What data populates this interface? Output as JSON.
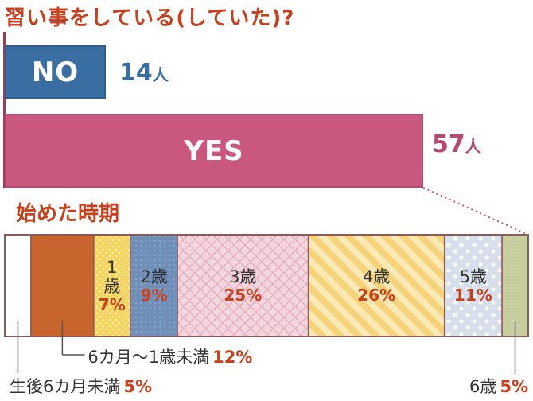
{
  "title": "習い事をしている(していた)?",
  "no_bar": {
    "label": "NO",
    "count": "14",
    "unit": "人",
    "color": "#3a6ea2"
  },
  "yes_bar": {
    "label": "YES",
    "count": "57",
    "unit": "人",
    "color": "#c9577e"
  },
  "subtitle": "始めた時期",
  "chart_data": {
    "type": "bar",
    "stacked": true,
    "categories": [
      "生後6カ月未満",
      "6カ月〜1歳未満",
      "1歳",
      "2歳",
      "3歳",
      "4歳",
      "5歳",
      "6歳"
    ],
    "values": [
      5,
      12,
      7,
      9,
      25,
      26,
      11,
      5
    ],
    "value_labels": [
      "5%",
      "12%",
      "7%",
      "9%",
      "25%",
      "26%",
      "11%",
      "5%"
    ],
    "colors": [
      "#ffffff",
      "#c8652e",
      "#f7d460",
      "#6f8fb8",
      "#f2cdd5",
      "#f6da8a",
      "#dbe2ef",
      "#c9cfa3"
    ],
    "inside_labels": [
      {
        "age": "1\n歳",
        "pct": "7%"
      },
      {
        "age": "2歳",
        "pct": "9%"
      },
      {
        "age": "3歳",
        "pct": "25%"
      },
      {
        "age": "4歳",
        "pct": "26%"
      },
      {
        "age": "5歳",
        "pct": "11%"
      }
    ],
    "callouts": [
      {
        "label": "6カ月〜1歳未満",
        "pct": "12%"
      },
      {
        "label": "生後6カ月未満",
        "pct": "5%"
      },
      {
        "label": "6歳",
        "pct": "5%"
      }
    ]
  }
}
